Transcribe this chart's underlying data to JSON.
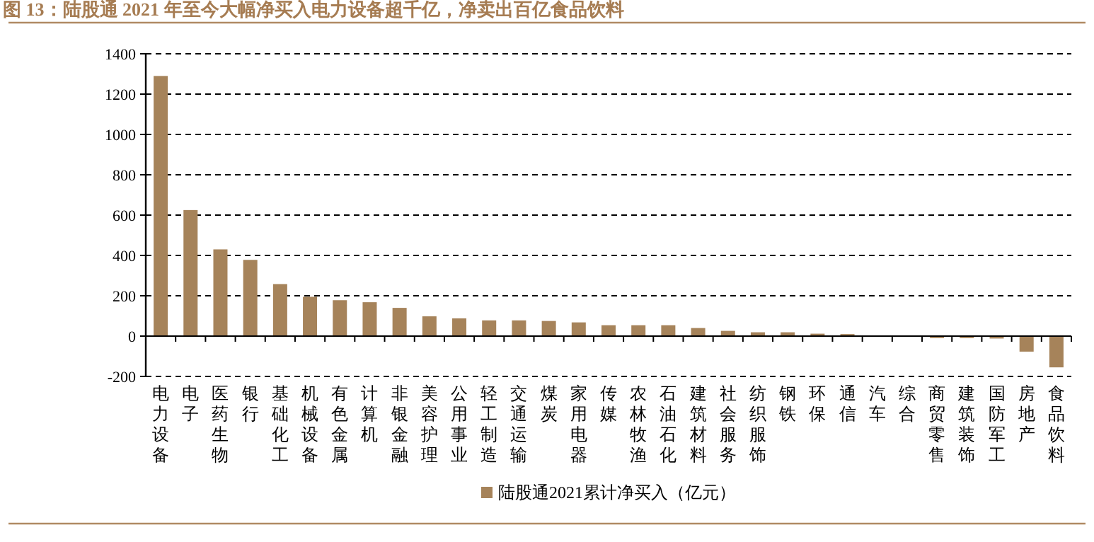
{
  "chart_data": {
    "type": "bar",
    "title": "图 13：陆股通 2021 年至今大幅净买入电力设备超千亿，净卖出百亿食品饮料",
    "categories": [
      "电力设备",
      "电子",
      "医药生物",
      "银行",
      "基础化工",
      "机械设备",
      "有色金属",
      "计算机",
      "非银金融",
      "美容护理",
      "公用事业",
      "轻工制造",
      "交通运输",
      "煤炭",
      "家用电器",
      "传媒",
      "农林牧渔",
      "石油石化",
      "建筑材料",
      "社会服务",
      "纺织服饰",
      "钢铁",
      "环保",
      "通信",
      "汽车",
      "综合",
      "商贸零售",
      "建筑装饰",
      "国防军工",
      "房地产",
      "食品饮料"
    ],
    "series": [
      {
        "name": "陆股通2021累计净买入（亿元）",
        "color": "#a6835a",
        "values": [
          1290,
          625,
          430,
          378,
          258,
          195,
          178,
          168,
          140,
          98,
          88,
          78,
          78,
          75,
          68,
          54,
          54,
          54,
          40,
          26,
          19,
          19,
          12,
          10,
          0,
          0,
          -10,
          -10,
          -12,
          -77,
          -155
        ]
      }
    ],
    "ylim": [
      -200,
      1400
    ],
    "yticks": [
      -200,
      0,
      200,
      400,
      600,
      800,
      1000,
      1200,
      1400
    ],
    "grid": "y",
    "legend": "bottom"
  }
}
